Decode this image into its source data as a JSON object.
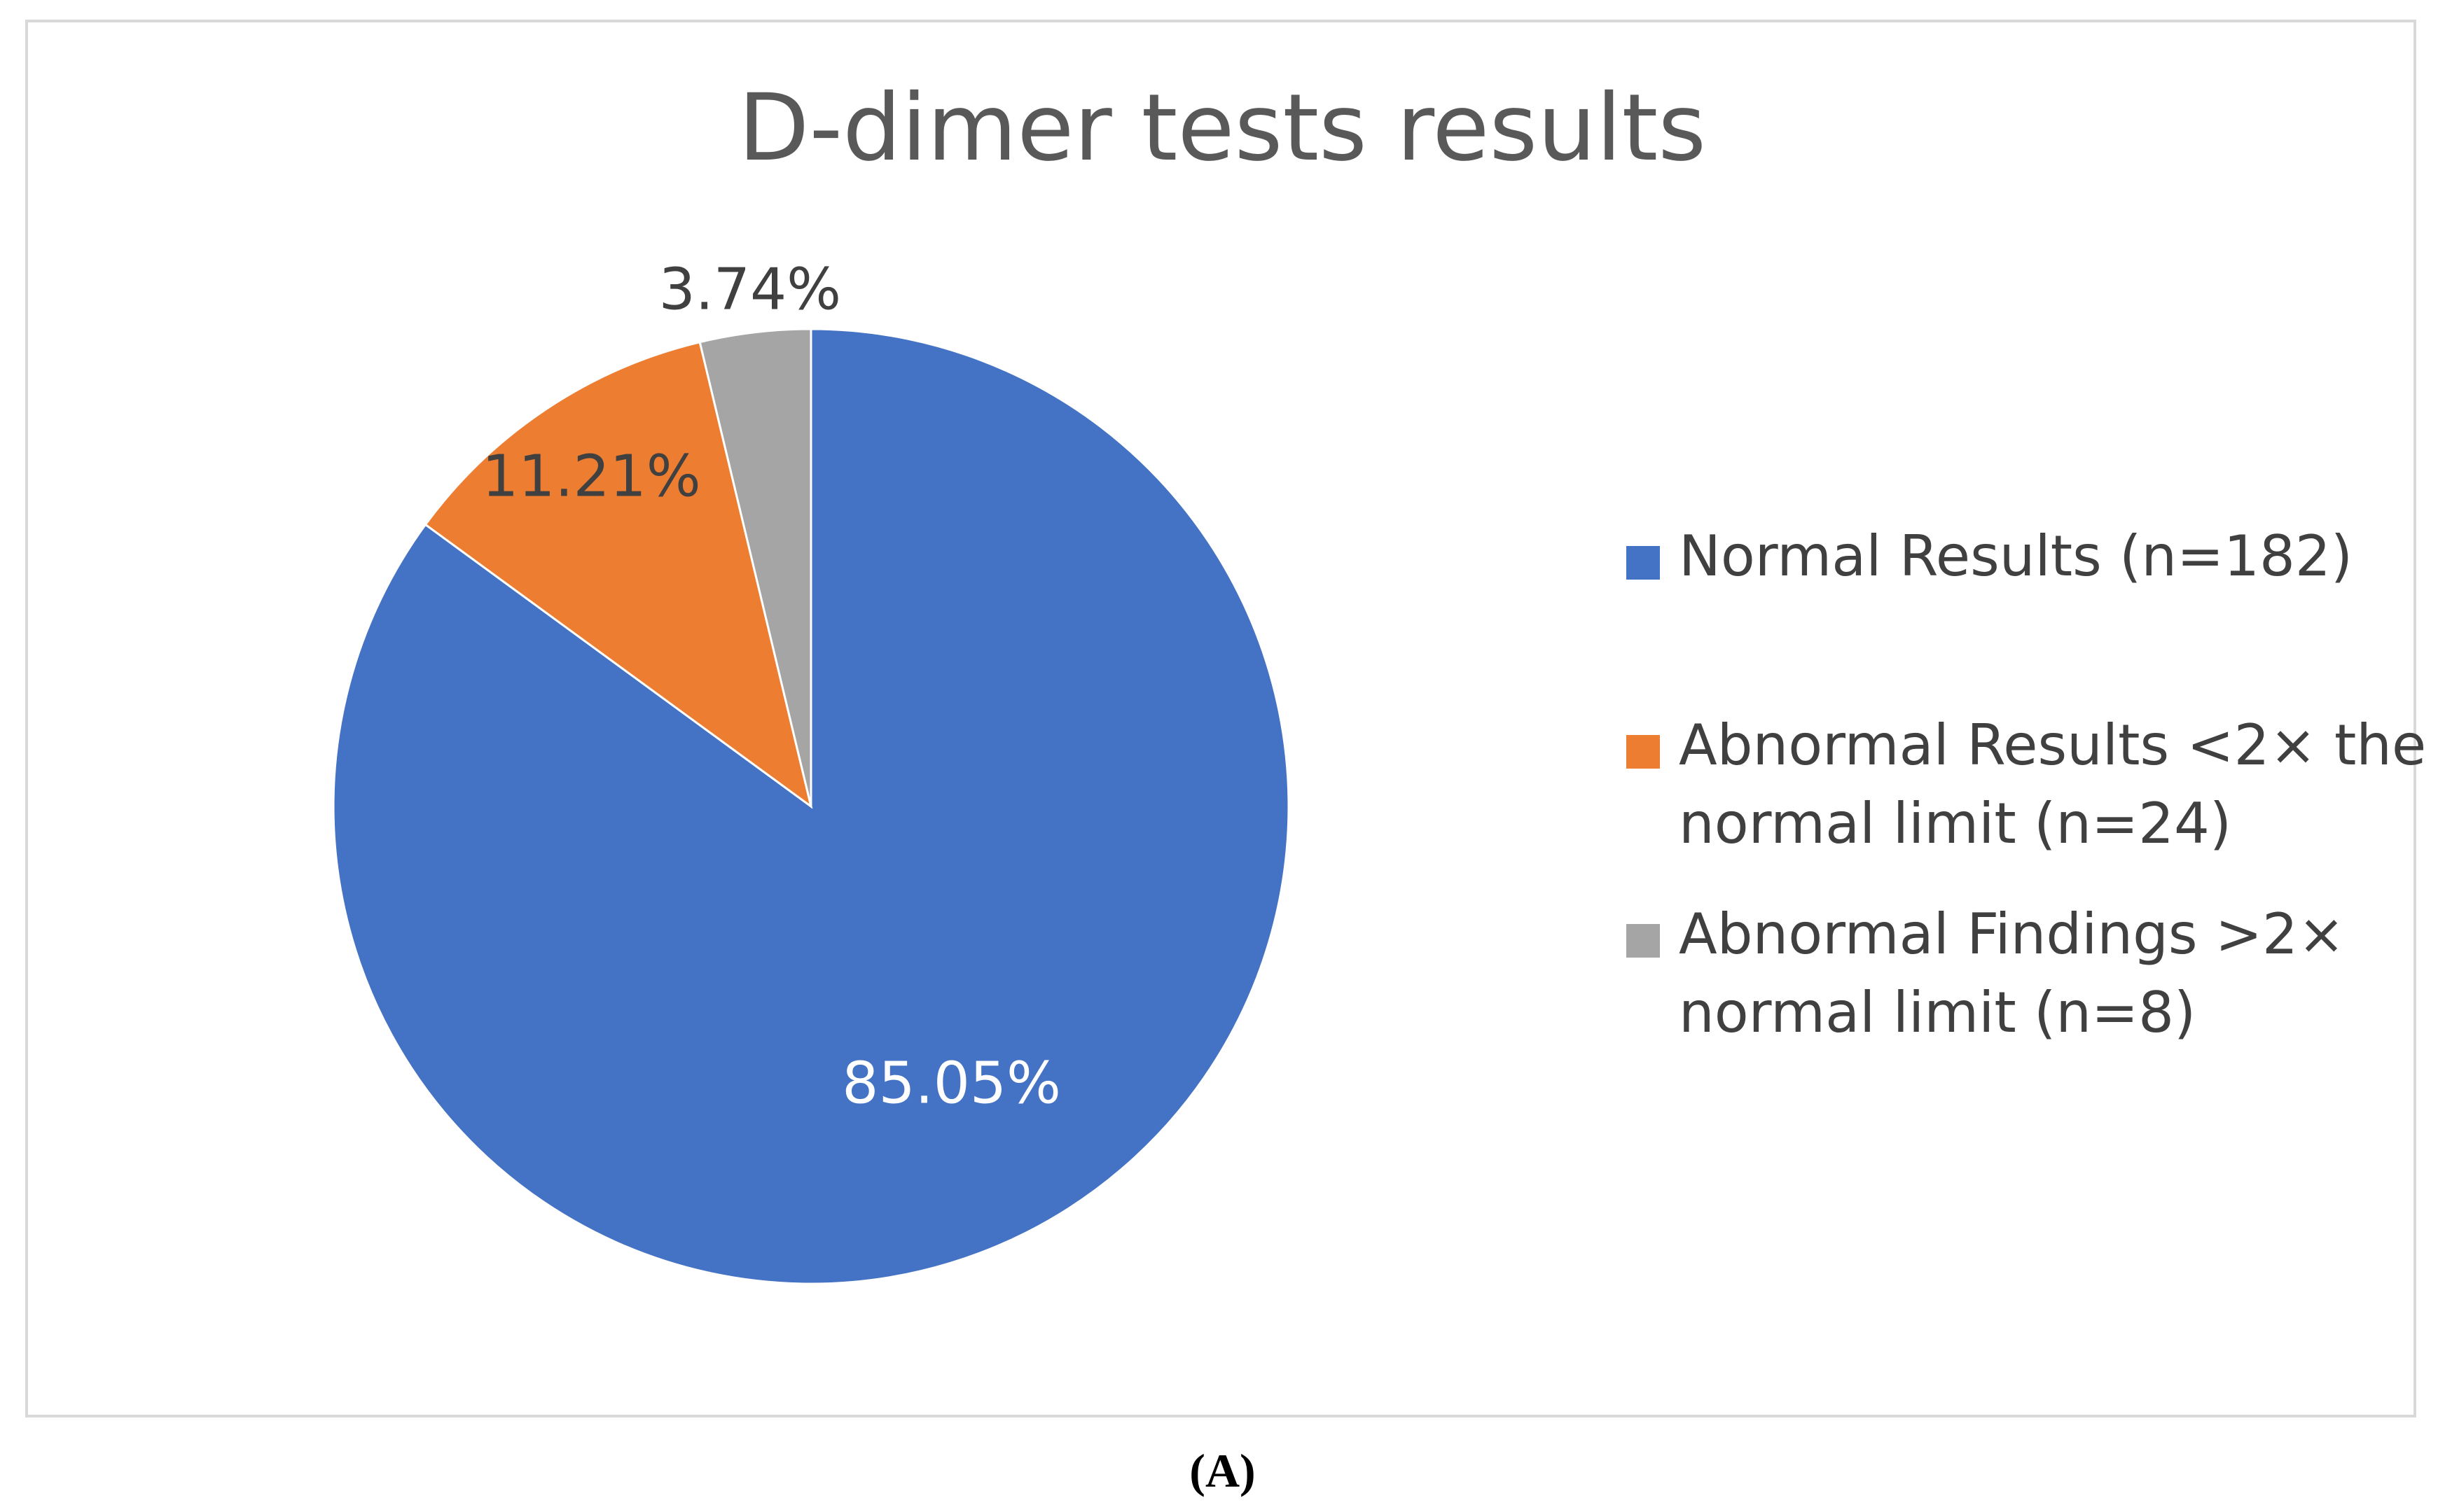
{
  "chart_data": {
    "type": "pie",
    "title": "D-dimer tests results",
    "slices": [
      {
        "label": "Normal Results (n=182)",
        "value": 85.05,
        "data_label": "85.05%",
        "color": "#4472c4",
        "label_color": "#ffffff"
      },
      {
        "label": "Abnormal Results <2× the normal limit (n=24)",
        "value": 11.21,
        "data_label": "11.21%",
        "color": "#ed7d31",
        "label_color": "#404040"
      },
      {
        "label": "Abnormal Findings >2× normal limit (n=8)",
        "value": 3.74,
        "data_label": "3.74%",
        "color": "#a5a5a5",
        "label_color": "#404040"
      }
    ],
    "start_angle": "12 o'clock",
    "direction": "clockwise",
    "legend_position": "right"
  },
  "caption": "(A)",
  "colors": {
    "border": "#d9d9d9",
    "title_text": "#595959",
    "label_text": "#404040"
  }
}
